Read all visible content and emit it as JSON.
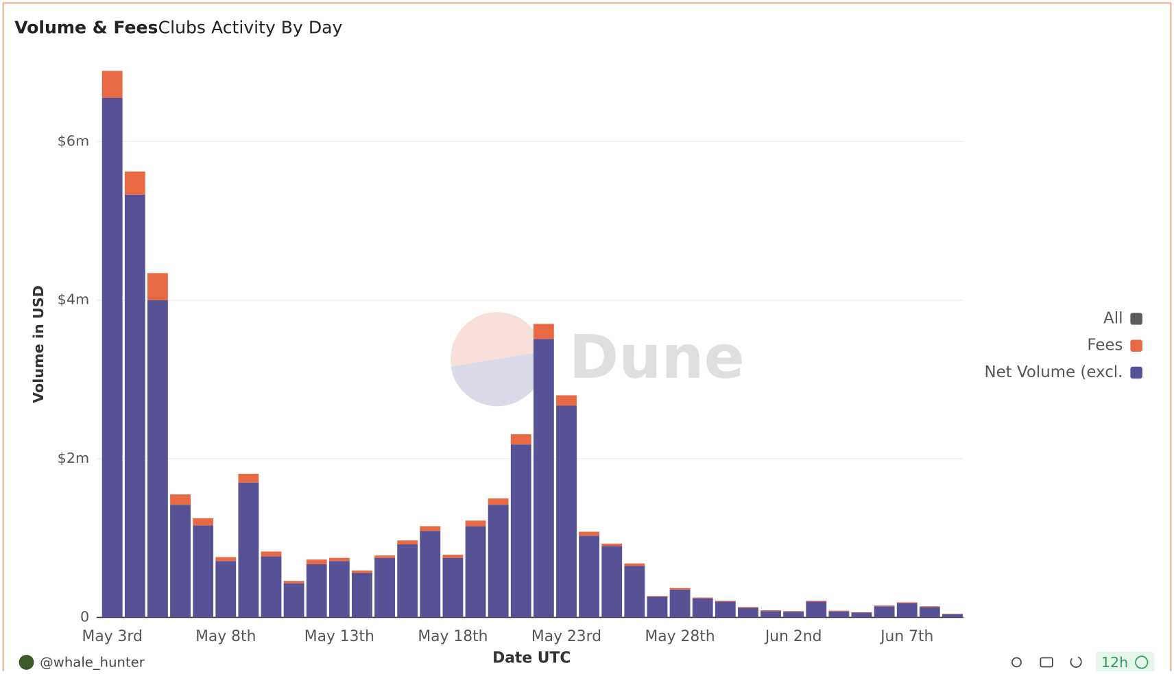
{
  "header": {
    "title": "Volume & Fees",
    "subtitle": "Clubs Activity By Day"
  },
  "chart_data": {
    "type": "stacked_bar",
    "categories": [
      "May 3rd",
      null,
      null,
      null,
      null,
      "May 8th",
      null,
      null,
      null,
      null,
      "May 13th",
      null,
      null,
      null,
      null,
      "May 18th",
      null,
      null,
      null,
      null,
      "May 23rd",
      null,
      null,
      null,
      null,
      "May 28th",
      null,
      null,
      null,
      null,
      "Jun 2nd",
      null,
      null,
      null,
      null,
      "Jun 7th",
      null,
      null
    ],
    "series": [
      {
        "name": "Fees",
        "color": "#e76a45",
        "values": [
          340000,
          290000,
          340000,
          130000,
          90000,
          50000,
          110000,
          60000,
          30000,
          60000,
          40000,
          30000,
          30000,
          50000,
          60000,
          40000,
          70000,
          80000,
          130000,
          190000,
          130000,
          50000,
          30000,
          30000,
          10000,
          20000,
          10000,
          10000,
          10000,
          10000,
          10000,
          10000,
          10000,
          5000,
          10000,
          10000,
          10000,
          5000
        ]
      },
      {
        "name": "Net Volume (excl.",
        "color": "#575196",
        "values": [
          6550000,
          5330000,
          4000000,
          1420000,
          1160000,
          710000,
          1700000,
          770000,
          430000,
          670000,
          710000,
          560000,
          750000,
          920000,
          1090000,
          750000,
          1150000,
          1420000,
          2180000,
          3510000,
          2670000,
          1030000,
          900000,
          650000,
          260000,
          350000,
          240000,
          200000,
          120000,
          80000,
          70000,
          200000,
          75000,
          60000,
          140000,
          180000,
          130000,
          40000
        ]
      }
    ],
    "legend_extra": {
      "name": "All",
      "color": "#5c5c5c"
    },
    "ylabel": "Volume in USD",
    "xlabel": "Date UTC",
    "ylim": [
      0,
      7000000
    ],
    "yticks": [
      0,
      {
        "value": 2000000,
        "label": "$2m"
      },
      {
        "value": 4000000,
        "label": "$4m"
      },
      {
        "value": 6000000,
        "label": "$6m"
      }
    ],
    "grid": true,
    "legend": "right"
  },
  "footer": {
    "author": "@whale_hunter",
    "refresh": "12h"
  },
  "watermark": "Dune"
}
